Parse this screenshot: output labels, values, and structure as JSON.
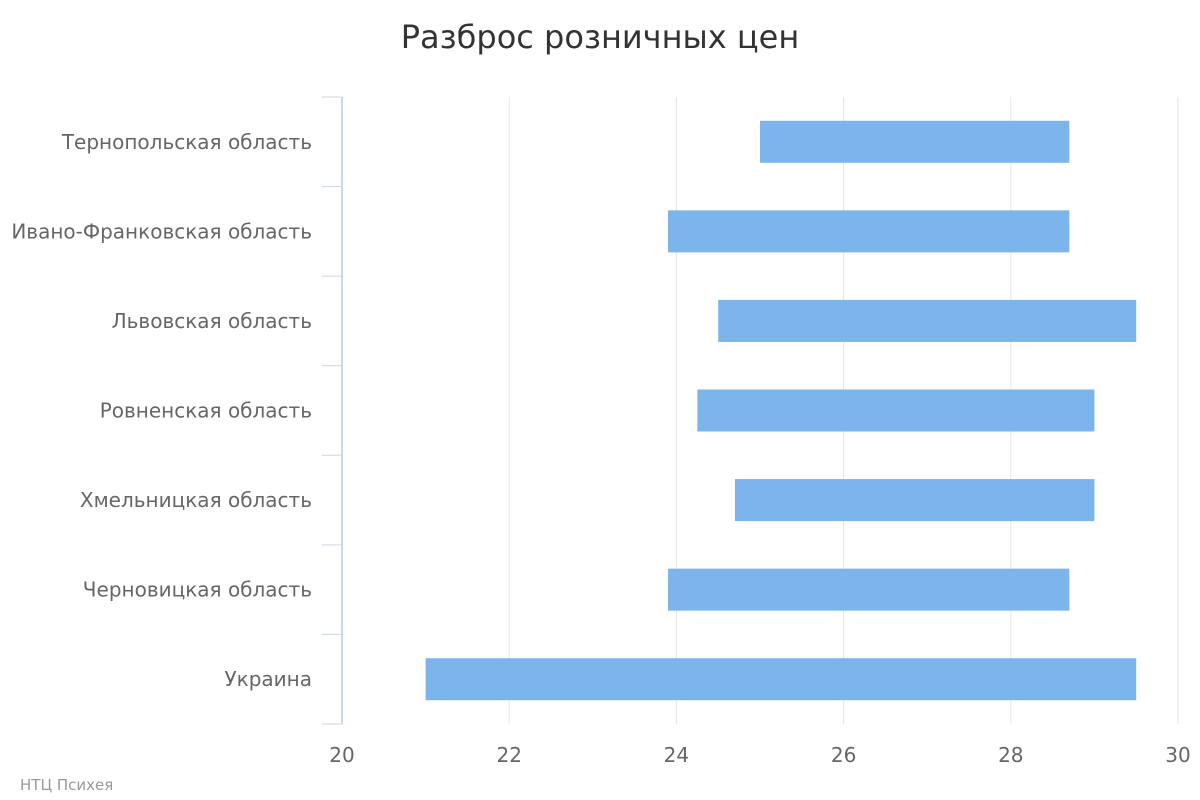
{
  "chart_data": {
    "type": "bar",
    "orientation": "horizontal",
    "range_bars": true,
    "title": "Разброс розничных цен",
    "xlabel": "",
    "ylabel": "",
    "categories": [
      "Тернопольская область",
      "Ивано-Франковская область",
      "Львовская область",
      "Ровненская область",
      "Хмельницкая область",
      "Черновицкая область",
      "Украина"
    ],
    "series": [
      {
        "low": [
          25.0,
          23.9,
          24.5,
          24.25,
          24.7,
          23.9,
          21.0
        ],
        "high": [
          28.7,
          28.7,
          29.5,
          29.0,
          29.0,
          28.7,
          29.5
        ]
      }
    ],
    "xlim": [
      20,
      30
    ],
    "xticks": [
      "20",
      "22",
      "24",
      "26",
      "28",
      "30"
    ],
    "grid": true,
    "legend": "none",
    "bar_color": "#7cb5ec",
    "grid_color": "#e6e6e6",
    "axis_color": "#ccd6eb"
  },
  "credit": "НТЦ Психея"
}
